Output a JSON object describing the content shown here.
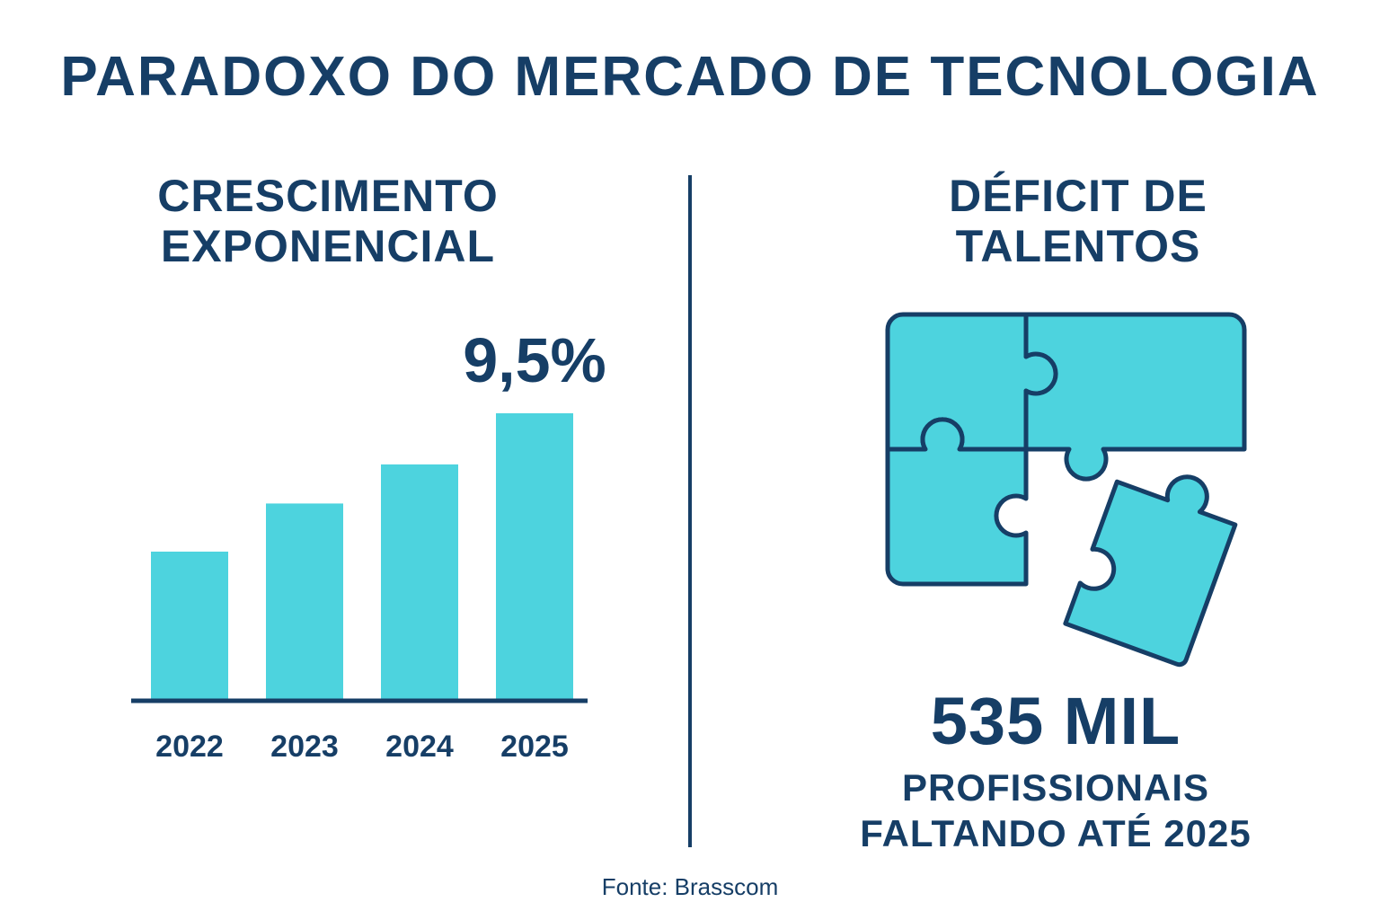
{
  "title": "PARADOXO DO MERCADO DE TECNOLOGIA",
  "left_section": {
    "title_line1": "CRESCIMENTO",
    "title_line2": "EXPONENCIAL"
  },
  "right_section": {
    "title_line1": "DÉFICIT DE",
    "title_line2": "TALENTOS",
    "icon": "puzzle-icon",
    "big_number": "535 MIL",
    "subtitle_line1": "PROFISSIONAIS",
    "subtitle_line2": "FALTANDO ATÉ 2025"
  },
  "source": "Fonte: Brasscom",
  "colors": {
    "primary": "#163e66",
    "accent": "#4dd3de"
  },
  "chart_data": {
    "type": "bar",
    "categories": [
      "2022",
      "2023",
      "2024",
      "2025"
    ],
    "values": [
      4.9,
      6.5,
      7.8,
      9.5
    ],
    "annotation": "9,5%",
    "ylim": [
      0,
      9.5
    ],
    "grid": false,
    "xlabel": "",
    "ylabel": ""
  }
}
